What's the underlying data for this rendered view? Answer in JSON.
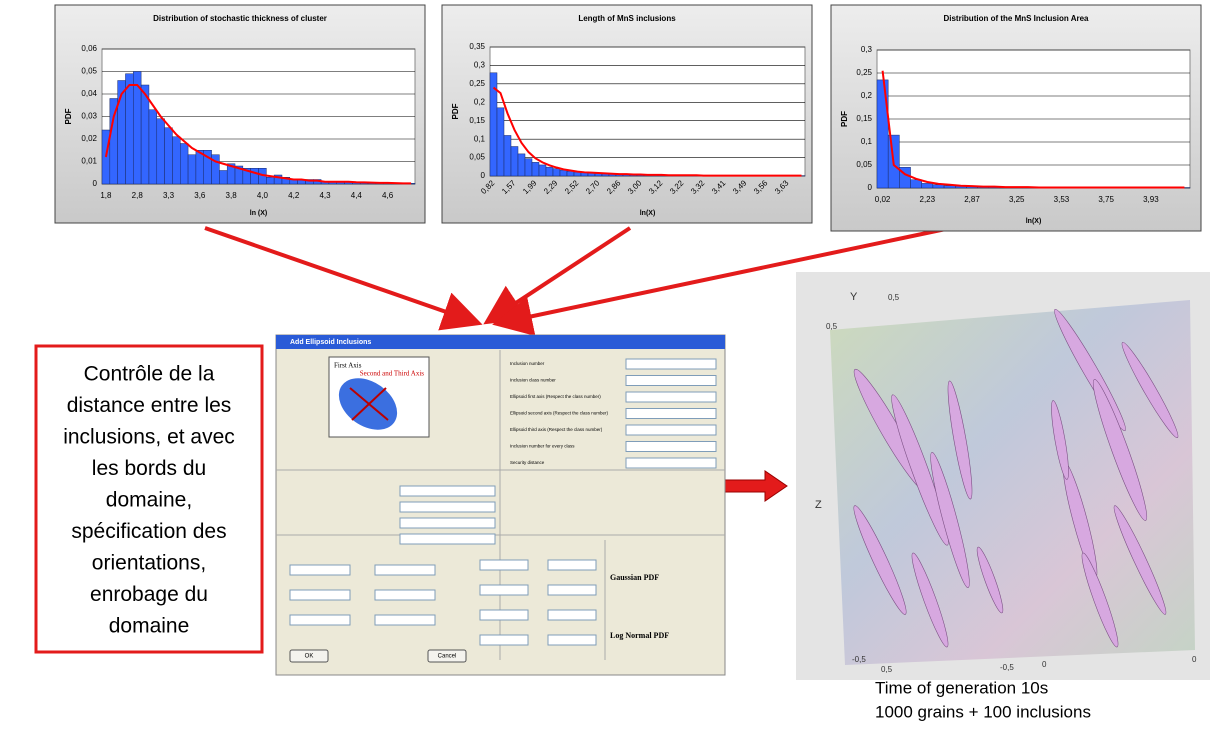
{
  "chart_data": [
    {
      "type": "bar",
      "title": "Distribution of stochastic thickness of cluster",
      "y_label": "PDF",
      "x_label": "ln (X)",
      "categories": [
        "1,8",
        null,
        null,
        null,
        "2,8",
        null,
        null,
        null,
        "3,3",
        null,
        null,
        null,
        "3,6",
        null,
        null,
        null,
        "3,8",
        null,
        null,
        null,
        "4,0",
        null,
        null,
        null,
        "4,2",
        null,
        null,
        null,
        "4,3",
        null,
        null,
        null,
        "4,4",
        null,
        null,
        null,
        "4,6",
        null,
        null,
        null
      ],
      "series": [
        {
          "kind": "bar",
          "color": "#3366ff",
          "values": [
            0.024,
            0.038,
            0.046,
            0.049,
            0.05,
            0.044,
            0.033,
            0.029,
            0.025,
            0.021,
            0.018,
            0.013,
            0.015,
            0.015,
            0.013,
            0.006,
            0.009,
            0.008,
            0.007,
            0.007,
            0.007,
            0.003,
            0.004,
            0.003,
            0.002,
            0.002,
            0.002,
            0.002,
            0.001,
            0.001,
            0.001,
            0.001,
            0.001,
            0.001,
            0.0005,
            0.0005,
            0.0005,
            0.0005,
            0.0003,
            0.0003
          ]
        },
        {
          "kind": "line",
          "color": "#ff0000",
          "values": [
            0.012,
            0.03,
            0.04,
            0.044,
            0.044,
            0.04,
            0.035,
            0.03,
            0.026,
            0.022,
            0.019,
            0.016,
            0.014,
            0.012,
            0.01,
            0.009,
            0.008,
            0.007,
            0.006,
            0.005,
            0.004,
            0.0035,
            0.003,
            0.0025,
            0.002,
            0.002,
            0.0015,
            0.0015,
            0.001,
            0.001,
            0.001,
            0.001,
            0.0008,
            0.0007,
            0.0006,
            0.0005,
            0.0005,
            0.0004,
            0.0003,
            0.0003
          ]
        }
      ],
      "ylim": [
        0,
        0.06
      ],
      "yticks": [
        0,
        {
          "value": 0.01,
          "label": "0,01"
        },
        {
          "value": 0.02,
          "label": "0,02"
        },
        {
          "value": 0.03,
          "label": "0,03"
        },
        {
          "value": 0.04,
          "label": "0,04"
        },
        {
          "value": 0.05,
          "label": "0,05"
        },
        {
          "value": 0.06,
          "label": "0,06"
        }
      ],
      "grid": true,
      "x_label_rotation": 0
    },
    {
      "type": "bar",
      "title": "Length of MnS inclusions",
      "y_label": "PDF",
      "x_label": "ln(X)",
      "categories": [
        "0,82",
        null,
        null,
        "1,57",
        null,
        null,
        "1,99",
        null,
        null,
        "2,29",
        null,
        null,
        "2,52",
        null,
        null,
        "2,70",
        null,
        null,
        "2,86",
        null,
        null,
        "3,00",
        null,
        null,
        "3,12",
        null,
        null,
        "3,22",
        null,
        null,
        "3,32",
        null,
        null,
        "3,41",
        null,
        null,
        "3,49",
        null,
        null,
        "3,56",
        null,
        null,
        "3,63",
        null,
        null
      ],
      "series": [
        {
          "kind": "bar",
          "color": "#3366ff",
          "values": [
            0.28,
            0.185,
            0.11,
            0.08,
            0.06,
            0.047,
            0.037,
            0.03,
            0.024,
            0.02,
            0.016,
            0.013,
            0.011,
            0.01,
            0.008,
            0.007,
            0.006,
            0.005,
            0.005,
            0.004,
            0.004,
            0.003,
            0.003,
            0.003,
            0.002,
            0.002,
            0.002,
            0.002,
            0.002,
            0.001,
            0.001,
            0.001,
            0.001,
            0.001,
            0.001,
            0.001,
            0.001,
            0.001,
            0.001,
            0.001,
            0.001,
            0.001,
            0.001,
            0.001,
            0.001
          ]
        },
        {
          "kind": "line",
          "color": "#ff0000",
          "values": [
            0.24,
            0.225,
            0.17,
            0.125,
            0.09,
            0.065,
            0.048,
            0.037,
            0.029,
            0.023,
            0.018,
            0.015,
            0.012,
            0.01,
            0.009,
            0.008,
            0.007,
            0.006,
            0.005,
            0.005,
            0.004,
            0.004,
            0.003,
            0.003,
            0.003,
            0.002,
            0.002,
            0.002,
            0.002,
            0.002,
            0.001,
            0.001,
            0.001,
            0.001,
            0.001,
            0.001,
            0.001,
            0.001,
            0.001,
            0.001,
            0.001,
            0.001,
            0.001,
            0.001,
            0.001
          ]
        }
      ],
      "ylim": [
        0,
        0.35
      ],
      "yticks": [
        0,
        {
          "value": 0.05,
          "label": "0,05"
        },
        {
          "value": 0.1,
          "label": "0,1"
        },
        {
          "value": 0.15,
          "label": "0,15"
        },
        {
          "value": 0.2,
          "label": "0,2"
        },
        {
          "value": 0.25,
          "label": "0,25"
        },
        {
          "value": 0.3,
          "label": "0,3"
        },
        {
          "value": 0.35,
          "label": "0,35"
        }
      ],
      "grid": true,
      "x_label_rotation": -45
    },
    {
      "type": "bar",
      "title": "Distribution of the MnS Inclusion Area",
      "y_label": "PDF",
      "x_label": "ln(X)",
      "categories": [
        "0,02",
        null,
        null,
        null,
        "2,23",
        null,
        null,
        null,
        "2,87",
        null,
        null,
        null,
        "3,25",
        null,
        null,
        null,
        "3,53",
        null,
        null,
        null,
        "3,75",
        null,
        null,
        null,
        "3,93",
        null,
        null,
        null
      ],
      "series": [
        {
          "kind": "bar",
          "color": "#3366ff",
          "values": [
            0.235,
            0.115,
            0.045,
            0.018,
            0.01,
            0.007,
            0.005,
            0.004,
            0.003,
            0.003,
            0.002,
            0.002,
            0.002,
            0.002,
            0.001,
            0.001,
            0.001,
            0.001,
            0.001,
            0.001,
            0.001,
            0.001,
            0.001,
            0.001,
            0.001,
            0.001,
            0.001,
            0.001
          ]
        },
        {
          "kind": "line",
          "color": "#ff0000",
          "values": [
            0.255,
            0.05,
            0.03,
            0.02,
            0.013,
            0.009,
            0.007,
            0.005,
            0.004,
            0.003,
            0.003,
            0.002,
            0.002,
            0.002,
            0.001,
            0.001,
            0.001,
            0.001,
            0.001,
            0.001,
            0.001,
            0.001,
            0.001,
            0.001,
            0.001,
            0.001,
            0.001,
            0.001
          ]
        }
      ],
      "ylim": [
        0,
        0.3
      ],
      "yticks": [
        0,
        {
          "value": 0.05,
          "label": "0,05"
        },
        {
          "value": 0.1,
          "label": "0,1"
        },
        {
          "value": 0.15,
          "label": "0,15"
        },
        {
          "value": 0.2,
          "label": "0,2"
        },
        {
          "value": 0.25,
          "label": "0,25"
        },
        {
          "value": 0.3,
          "label": "0,3"
        }
      ],
      "grid": true,
      "x_label_rotation": 0
    }
  ],
  "annotation": {
    "lines": [
      "Contrôle de la",
      "distance entre les",
      "inclusions, et avec",
      "les bords du",
      "domaine,",
      "spécification  des",
      "orientations,",
      "enrobage du",
      "domaine"
    ]
  },
  "dialog": {
    "title": "Add Ellipsoid Inclusions",
    "diagram": [
      "First Axis",
      "Second and Third Axis"
    ],
    "fields": [
      "Inclusion number",
      "Inclusion class number",
      "Ellipsoid first axis (Respect the class number)",
      "Ellipsoid second axis (Respect the class number)",
      "Ellipsoid third axis (Respect the class number)",
      "Inclusion number for every class",
      "Security distance"
    ],
    "formulas": [
      "Gaussian PDF",
      "Log Normal PDF"
    ],
    "buttons": [
      "OK",
      "Cancel"
    ]
  },
  "render": {
    "axis_labels": [
      "Y",
      "0,5",
      "0,5",
      "Z",
      "0",
      "-0,5",
      "0,5",
      "0",
      "-0,5"
    ],
    "caption": [
      "Time of generation 10s",
      "1000 grains + 100 inclusions"
    ]
  }
}
